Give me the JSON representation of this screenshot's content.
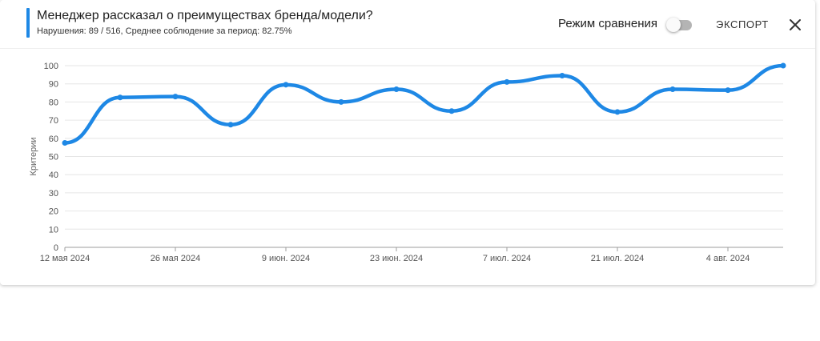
{
  "header": {
    "title": "Менеджер рассказал о преимуществах бренда/модели?",
    "subtitle": "Нарушения: 89 / 516, Среднее соблюдение за период: 82.75%",
    "accent_color": "#1e88e5"
  },
  "controls": {
    "compare_label": "Режим сравнения",
    "compare_enabled": false,
    "export_label": "ЭКСПОРТ",
    "close_icon": "close-icon"
  },
  "chart_data": {
    "type": "line",
    "title": "",
    "ylabel": "Критерии",
    "xlabel": "",
    "ylim": [
      0,
      100
    ],
    "y_ticks": [
      0,
      10,
      20,
      30,
      40,
      50,
      60,
      70,
      80,
      90,
      100
    ],
    "x_tick_labels": [
      "12 мая 2024",
      "26 мая 2024",
      "9 июн. 2024",
      "23 июн. 2024",
      "7 июл. 2024",
      "21 июл. 2024",
      "4 авг. 2024"
    ],
    "x_tick_dates": [
      "2024-05-12",
      "2024-05-26",
      "2024-06-09",
      "2024-06-23",
      "2024-07-07",
      "2024-07-21",
      "2024-08-04"
    ],
    "x_range": [
      "2024-05-12",
      "2024-08-11"
    ],
    "grid": true,
    "line_color": "#1e88e5",
    "series": [
      {
        "points": [
          {
            "date": "2024-05-12",
            "value": 57.5
          },
          {
            "date": "2024-05-19",
            "value": 82.5
          },
          {
            "date": "2024-05-26",
            "value": 83
          },
          {
            "date": "2024-06-02",
            "value": 67.5
          },
          {
            "date": "2024-06-09",
            "value": 89.5
          },
          {
            "date": "2024-06-16",
            "value": 80
          },
          {
            "date": "2024-06-23",
            "value": 87
          },
          {
            "date": "2024-06-30",
            "value": 75
          },
          {
            "date": "2024-07-07",
            "value": 91
          },
          {
            "date": "2024-07-14",
            "value": 94.5
          },
          {
            "date": "2024-07-21",
            "value": 74.5
          },
          {
            "date": "2024-07-28",
            "value": 87
          },
          {
            "date": "2024-08-04",
            "value": 86.5
          },
          {
            "date": "2024-08-11",
            "value": 100
          }
        ]
      }
    ]
  }
}
